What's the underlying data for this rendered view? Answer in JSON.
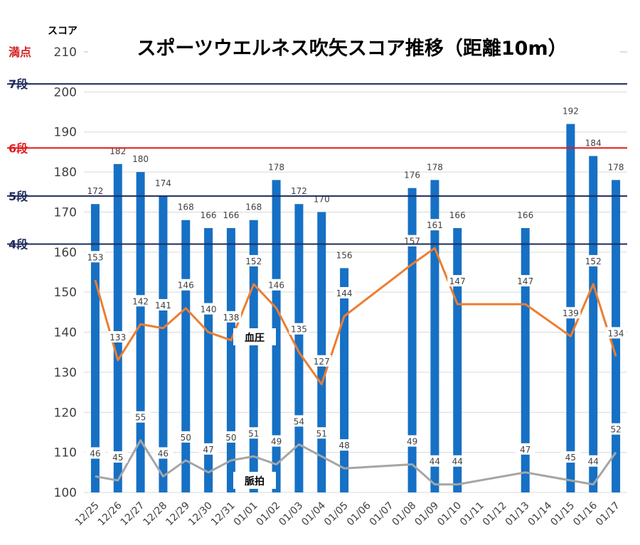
{
  "chart_data": {
    "type": "bar",
    "title": "スポーツウエルネス吹矢スコア推移（距離10m）",
    "ylabel": "スコア",
    "ylim": [
      100,
      210
    ],
    "yticks": [
      100,
      110,
      120,
      130,
      140,
      150,
      160,
      170,
      180,
      190,
      200,
      210
    ],
    "grid": true,
    "categories": [
      "12/25",
      "12/26",
      "12/27",
      "12/28",
      "12/29",
      "12/30",
      "12/31",
      "01/01",
      "01/02",
      "01/03",
      "01/04",
      "01/05",
      "01/06",
      "01/07",
      "01/08",
      "01/09",
      "01/10",
      "01/11",
      "01/12",
      "01/13",
      "01/14",
      "01/15",
      "01/16",
      "01/17"
    ],
    "series": [
      {
        "name": "スコア",
        "type": "bar",
        "color": "#1670c4",
        "values": [
          172,
          182,
          180,
          174,
          168,
          166,
          166,
          168,
          178,
          172,
          170,
          156,
          null,
          null,
          176,
          178,
          166,
          null,
          null,
          166,
          null,
          192,
          184,
          178
        ]
      },
      {
        "name": "血圧",
        "type": "line",
        "color": "#ed7d31",
        "values": [
          153,
          133,
          142,
          141,
          146,
          140,
          138,
          152,
          146,
          135,
          127,
          144,
          null,
          null,
          157,
          161,
          147,
          null,
          null,
          147,
          null,
          139,
          152,
          134
        ]
      },
      {
        "name": "脈拍",
        "type": "line",
        "color": "#a5a5a5",
        "values": [
          46,
          45,
          55,
          46,
          50,
          47,
          50,
          51,
          49,
          54,
          51,
          48,
          null,
          null,
          49,
          44,
          44,
          null,
          null,
          47,
          null,
          45,
          44,
          52
        ]
      }
    ],
    "reference_lines": [
      {
        "label": "満点",
        "value": 210,
        "color": "#d62020"
      },
      {
        "label": "7段",
        "value": 202,
        "color": "#1f2a5c"
      },
      {
        "label": "6段",
        "value": 186,
        "color": "#e01b1b"
      },
      {
        "label": "5段",
        "value": 174,
        "color": "#1f2a5c"
      },
      {
        "label": "4段",
        "value": 162,
        "color": "#1f2a5c"
      }
    ],
    "series_tags": {
      "bp": "血圧",
      "pulse": "脈拍"
    }
  }
}
